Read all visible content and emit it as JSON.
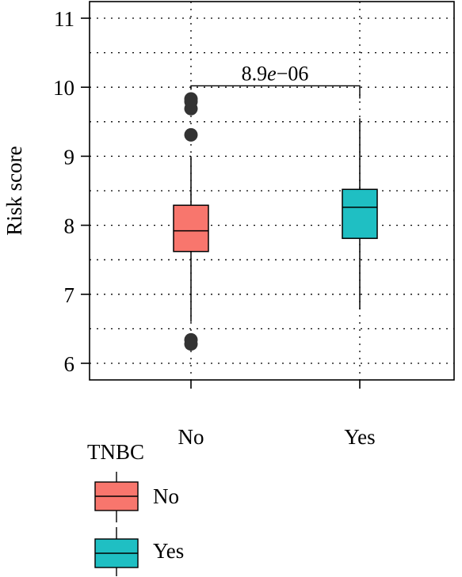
{
  "chart_data": {
    "type": "box",
    "categories": [
      "No",
      "Yes"
    ],
    "ylabel": "Risk score",
    "xlabel": "",
    "ylim": [
      5.8,
      11.25
    ],
    "yticks": [
      6,
      7,
      8,
      9,
      10,
      11
    ],
    "grid": true,
    "colors": {
      "No": "#F8766D",
      "Yes": "#1FBFC3",
      "outlier": "#333333"
    },
    "boxes": [
      {
        "category": "No",
        "whisker_low": 6.6,
        "q1": 7.62,
        "median": 7.92,
        "q3": 8.29,
        "whisker_high": 9.0,
        "outliers": [
          9.83,
          9.79,
          9.69,
          9.31,
          6.34,
          6.28
        ]
      },
      {
        "category": "Yes",
        "whisker_low": 6.78,
        "q1": 7.81,
        "median": 8.26,
        "q3": 8.52,
        "whisker_high": 9.55,
        "outliers": []
      }
    ],
    "comparison": {
      "label_main": "8.9",
      "label_e": "e",
      "label_exp": "−06",
      "y": 10.02
    },
    "legend": {
      "title": "TNBC",
      "items": [
        "No",
        "Yes"
      ],
      "placement": "bottom-left"
    }
  }
}
